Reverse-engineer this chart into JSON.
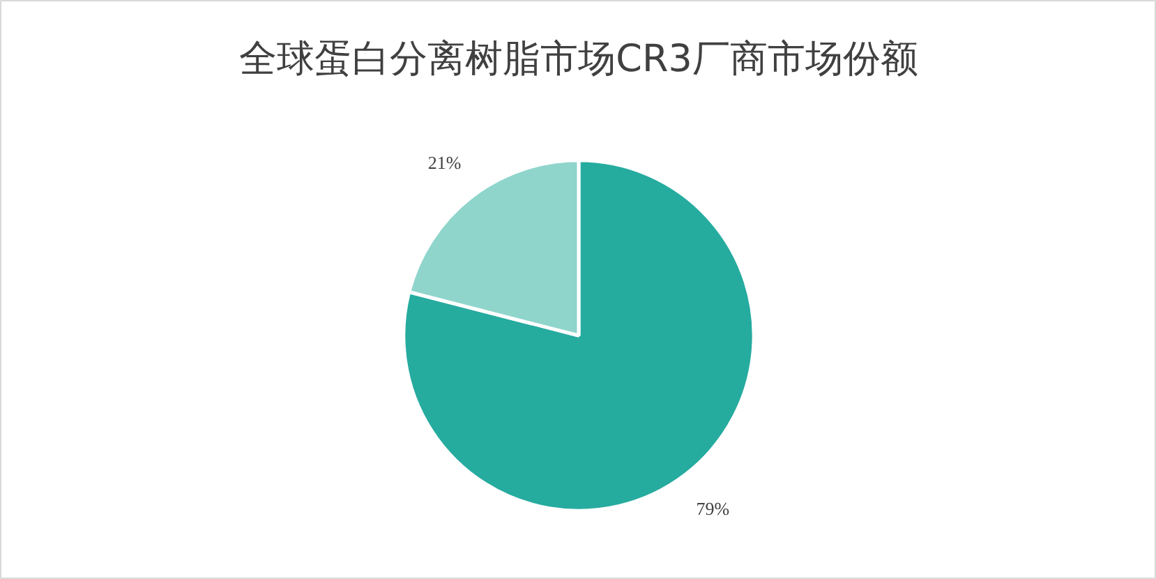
{
  "chart_data": {
    "type": "pie",
    "title": "全球蛋白分离树脂市场CR3厂商市场份额",
    "categories": [
      null,
      null
    ],
    "values": [
      79,
      21
    ],
    "colors": [
      "#26ab9f",
      "#8fd5cc"
    ],
    "value_labels": [
      "79%",
      "21%"
    ]
  }
}
